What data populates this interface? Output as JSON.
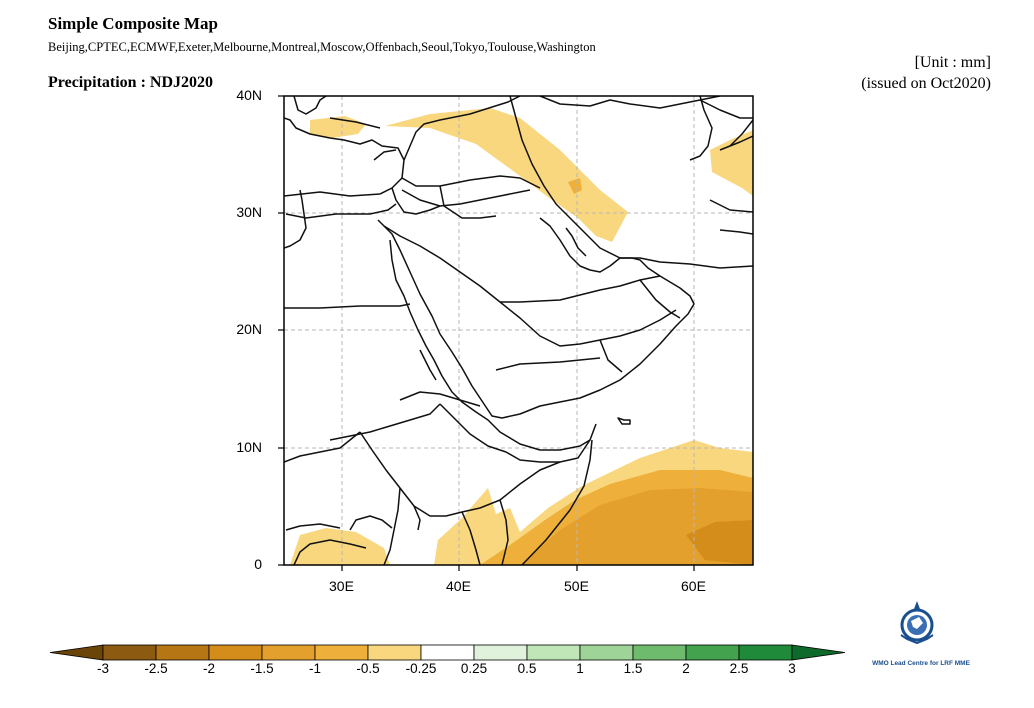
{
  "header": {
    "title": "Simple Composite Map",
    "centres": "Beijing,CPTEC,ECMWF,Exeter,Melbourne,Montreal,Moscow,Offenbach,Seoul,Tokyo,Toulouse,Washington",
    "variable": "Precipitation : NDJ2020",
    "unit": "[Unit : mm]",
    "issued": "(issued on Oct2020)"
  },
  "map": {
    "lon_range": [
      25,
      65
    ],
    "lat_range": [
      0,
      40
    ],
    "lat_ticks": [
      "40N",
      "30N",
      "20N",
      "10N",
      "0"
    ],
    "lon_ticks": [
      "30E",
      "40E",
      "50E",
      "60E"
    ]
  },
  "colorbar": {
    "labels": [
      "-3",
      "-2.5",
      "-2",
      "-1.5",
      "-1",
      "-0.5",
      "-0.25",
      "0.25",
      "0.5",
      "1",
      "1.5",
      "2",
      "2.5",
      "3"
    ],
    "colors": [
      "#8c5a10",
      "#b57613",
      "#d48d1a",
      "#e4a02c",
      "#eeb03b",
      "#f8d77e",
      "#ffffff",
      "#e0f2dc",
      "#c0e6b8",
      "#9ed497",
      "#6fbb6d",
      "#43a24d",
      "#1e8a3a"
    ],
    "low_color": "#6b4408",
    "high_color": "#0d6a2a"
  },
  "logo": {
    "text": "WMO Lead Centre for LRF MME"
  }
}
